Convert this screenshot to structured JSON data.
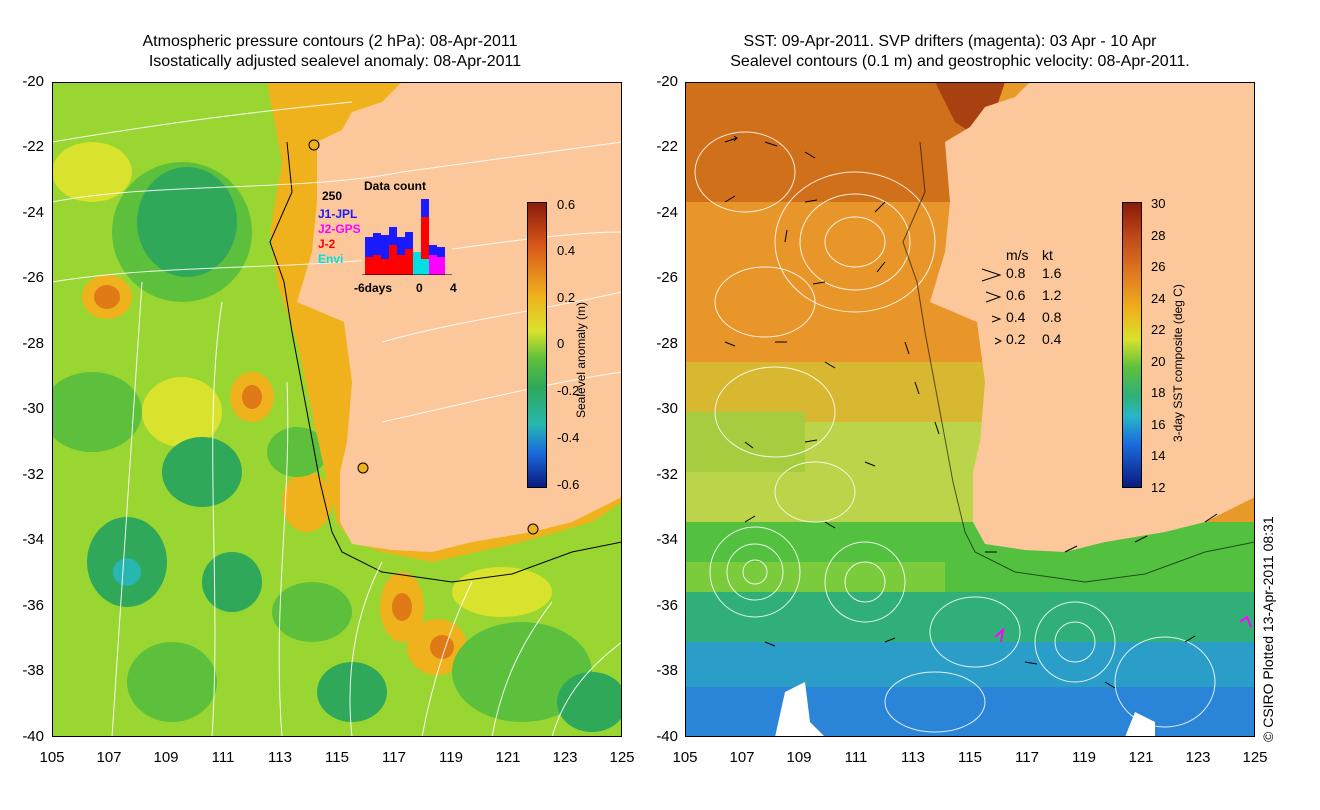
{
  "left_panel": {
    "title_line1": "Atmospheric pressure contours (2 hPa): 08-Apr-2011",
    "title_line2": "Isostatically adjusted sealevel anomaly: 08-Apr-2011",
    "yticks": [
      "-20",
      "-22",
      "-24",
      "-26",
      "-28",
      "-30",
      "-32",
      "-34",
      "-36",
      "-38",
      "-40"
    ],
    "xticks": [
      "105",
      "107",
      "109",
      "111",
      "113",
      "115",
      "117",
      "119",
      "121",
      "123",
      "125"
    ],
    "colorbar": {
      "label": "Sealevel anomaly (m)",
      "ticks": [
        "0.6",
        "0.4",
        "0.2",
        "0",
        "-0.2",
        "-0.4",
        "-0.6"
      ]
    },
    "data_count": {
      "title": "Data count",
      "ymax_label": "250",
      "x_labels": [
        "-6days",
        "0",
        "4"
      ],
      "legend": [
        {
          "name": "J1-JPL",
          "color": "#1a1aff"
        },
        {
          "name": "J2-GPS",
          "color": "#ff00ff"
        },
        {
          "name": "J-2",
          "color": "#ff0000"
        },
        {
          "name": "Envi",
          "color": "#00e0e0"
        }
      ]
    }
  },
  "right_panel": {
    "title_line1": "SST: 09-Apr-2011. SVP drifters (magenta): 03 Apr - 10 Apr",
    "title_line2": "Sealevel contours (0.1 m) and geostrophic velocity: 08-Apr-2011.",
    "yticks": [
      "-20",
      "-22",
      "-24",
      "-26",
      "-28",
      "-30",
      "-32",
      "-34",
      "-36",
      "-38",
      "-40"
    ],
    "xticks": [
      "105",
      "107",
      "109",
      "111",
      "113",
      "115",
      "117",
      "119",
      "121",
      "123",
      "125"
    ],
    "colorbar": {
      "label": "3-day SST composite (deg C)",
      "ticks": [
        "30",
        "28",
        "26",
        "24",
        "22",
        "20",
        "18",
        "16",
        "14",
        "12"
      ]
    },
    "velocity_legend": {
      "header_ms": "m/s",
      "header_kt": "kt",
      "rows": [
        {
          "ms": "0.8",
          "kt": "1.6"
        },
        {
          "ms": "0.6",
          "kt": "1.2"
        },
        {
          "ms": "0.4",
          "kt": "0.8"
        },
        {
          "ms": "0.2",
          "kt": "0.4"
        }
      ]
    }
  },
  "credit": "© CSIRO Plotted 13-Apr-2011 08:31"
}
